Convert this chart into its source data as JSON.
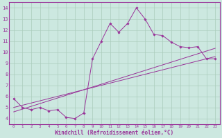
{
  "xlabel": "Windchill (Refroidissement éolien,°C)",
  "bg_color": "#cce8e0",
  "line_color": "#993399",
  "grid_color": "#aaccbb",
  "xlim": [
    -0.5,
    23.5
  ],
  "ylim": [
    3.5,
    14.5
  ],
  "yticks": [
    4,
    5,
    6,
    7,
    8,
    9,
    10,
    11,
    12,
    13,
    14
  ],
  "xticks": [
    0,
    1,
    2,
    3,
    4,
    5,
    6,
    7,
    8,
    9,
    10,
    11,
    12,
    13,
    14,
    15,
    16,
    17,
    18,
    19,
    20,
    21,
    22,
    23
  ],
  "data_y": [
    5.8,
    5.0,
    4.8,
    5.0,
    4.7,
    4.8,
    4.1,
    4.0,
    4.5,
    9.4,
    11.0,
    12.6,
    11.8,
    12.6,
    14.0,
    13.0,
    11.6,
    11.5,
    10.9,
    10.5,
    10.4,
    10.5,
    9.4,
    9.4
  ],
  "reg1_y": [
    4.6,
    4.85,
    5.1,
    5.35,
    5.6,
    5.85,
    6.1,
    6.35,
    6.6,
    6.85,
    7.1,
    7.35,
    7.6,
    7.85,
    8.1,
    8.35,
    8.6,
    8.85,
    9.1,
    9.35,
    9.6,
    9.85,
    10.1,
    10.35
  ],
  "reg2_y": [
    5.0,
    5.2,
    5.4,
    5.6,
    5.8,
    6.0,
    6.2,
    6.4,
    6.6,
    6.8,
    7.0,
    7.2,
    7.4,
    7.6,
    7.8,
    8.0,
    8.2,
    8.4,
    8.6,
    8.8,
    9.0,
    9.2,
    9.4,
    9.6
  ]
}
